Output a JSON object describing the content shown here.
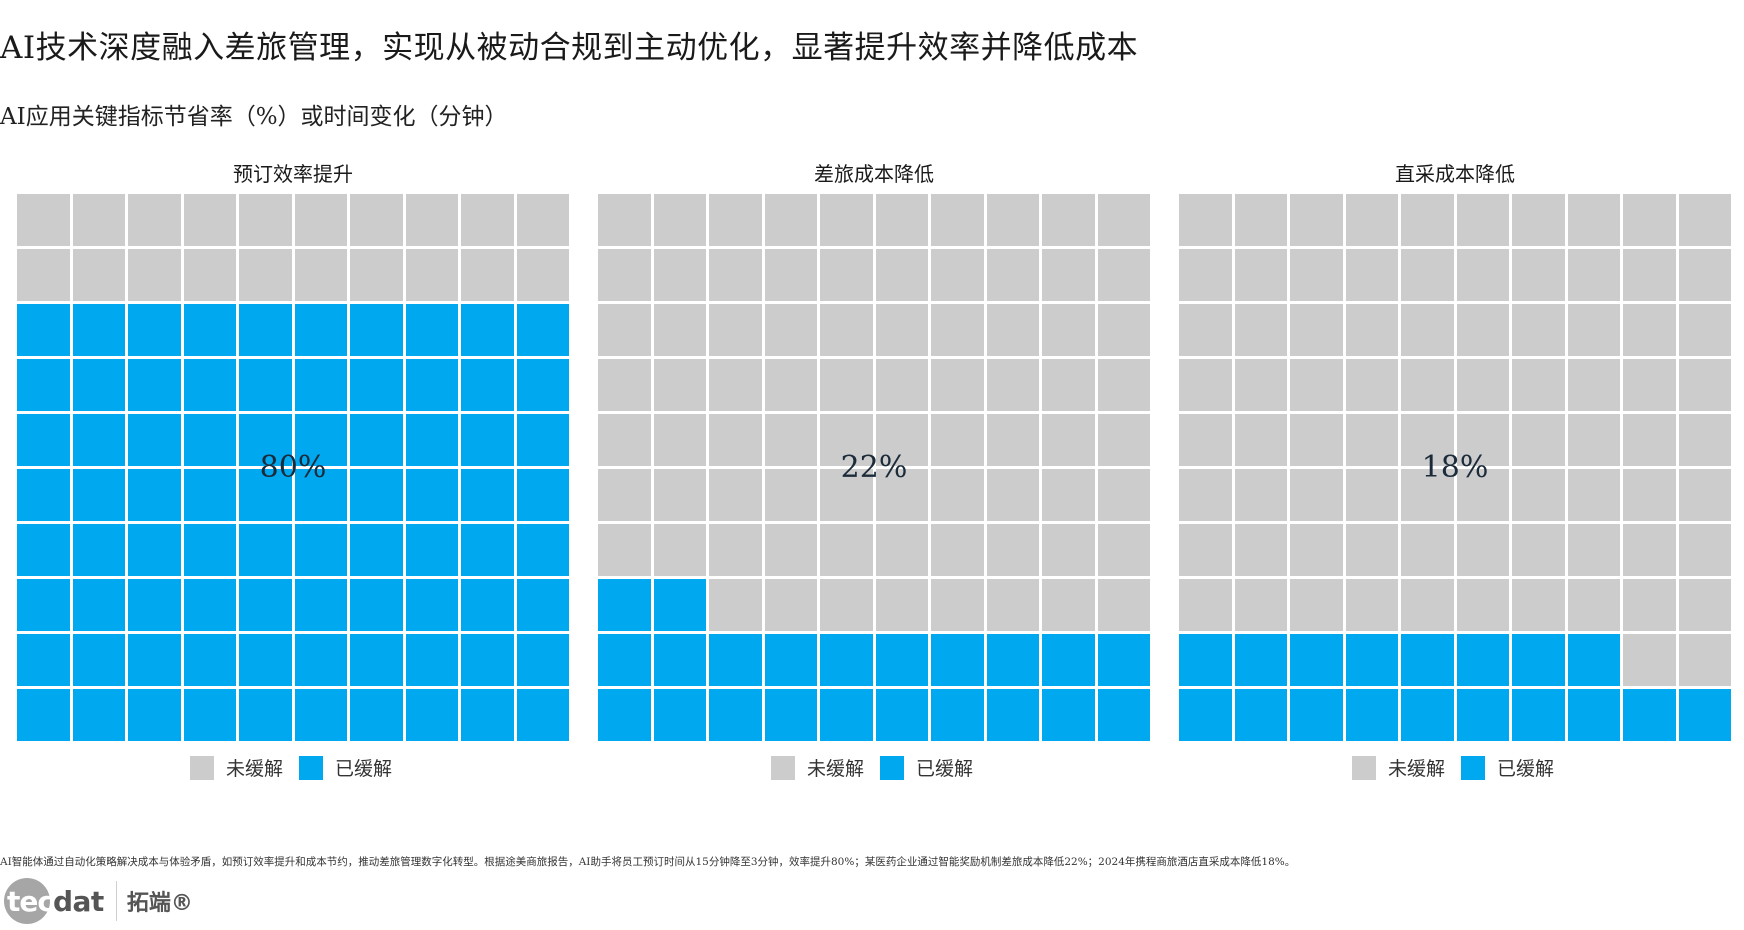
{
  "header": {
    "title": "AI技术深度融入差旅管理，实现从被动合规到主动优化，显著提升效率并降低成本",
    "subtitle": "AI应用关键指标节省率（%）或时间变化（分钟）"
  },
  "colors": {
    "unmitigated": "#cccccc",
    "mitigated": "#00a8f0",
    "gap": "#ffffff",
    "label": "#1b2b3a"
  },
  "legend": {
    "unmitigated_label": "未缓解",
    "mitigated_label": "已缓解"
  },
  "panels": [
    {
      "title": "预订效率提升",
      "value": 80,
      "label": "80%"
    },
    {
      "title": "差旅成本降低",
      "value": 22,
      "label": "22%"
    },
    {
      "title": "直采成本降低",
      "value": 18,
      "label": "18%"
    }
  ],
  "footnote": "AI智能体通过自动化策略解决成本与体验矛盾，如预订效率提升和成本节约，推动差旅管理数字化转型。根据途美商旅报告，AI助手将员工预订时间从15分钟降至3分钟，效率提升80%；某医药企业通过智能奖励机制差旅成本降低22%；2024年携程商旅酒店直采成本降低18%。",
  "logo": {
    "part1": "tec",
    "part2": "dat",
    "cn": "拓端®"
  },
  "chart_data": {
    "type": "waffle",
    "title": "AI技术深度融入差旅管理，实现从被动合规到主动优化，显著提升效率并降低成本",
    "subtitle": "AI应用关键指标节省率（%）或时间变化（分钟）",
    "grid": {
      "rows": 10,
      "cols": 10,
      "fill_order": "bottom-up, left-to-right"
    },
    "categories": [
      "预订效率提升",
      "差旅成本降低",
      "直采成本降低"
    ],
    "series": [
      {
        "name": "已缓解",
        "values": [
          80,
          22,
          18
        ],
        "color": "#00a8f0"
      },
      {
        "name": "未缓解",
        "values": [
          20,
          78,
          82
        ],
        "color": "#cccccc"
      }
    ],
    "legend_position": "bottom (per panel)",
    "annotations": [
      "80%",
      "22%",
      "18%"
    ]
  }
}
